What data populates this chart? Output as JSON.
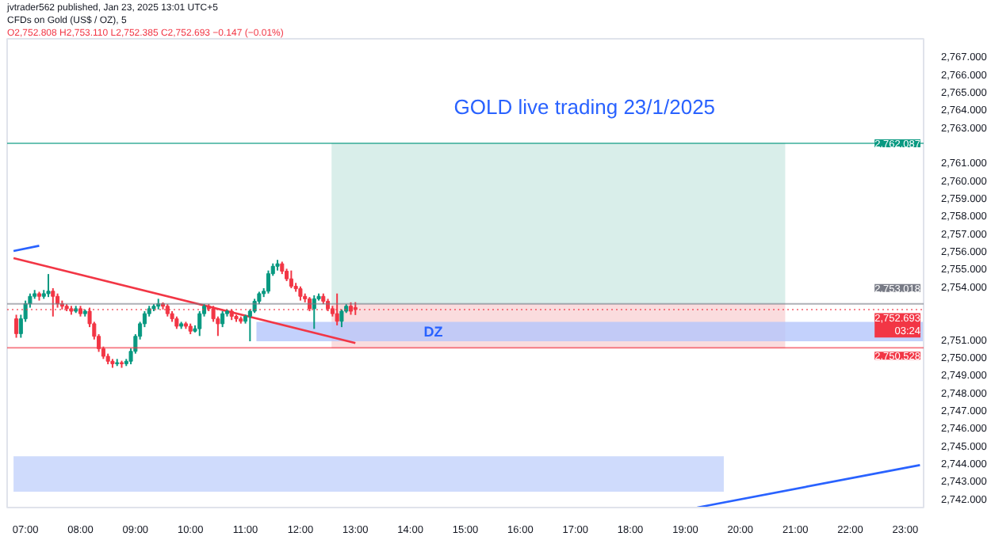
{
  "chart_data": {
    "type": "candlestick",
    "title": "GOLD live trading 23/1/2025",
    "annotations": [
      "jvtrader562 published, Jan 23, 2025 13:01 UTC+5",
      "CFDs on Gold (US$ / OZ), 5",
      "O2,752.808 H2,753.110 L2,752.385 C2,752.693 −0.147 (−0.01%)",
      "DZ"
    ],
    "x": [
      "2025-01-23T06:50",
      "2025-01-23T06:55",
      "2025-01-23T07:00",
      "2025-01-23T07:05",
      "2025-01-23T07:10",
      "2025-01-23T07:15",
      "2025-01-23T07:20",
      "2025-01-23T07:25",
      "2025-01-23T07:30",
      "2025-01-23T07:35",
      "2025-01-23T07:40",
      "2025-01-23T07:45",
      "2025-01-23T07:50",
      "2025-01-23T07:55",
      "2025-01-23T08:00",
      "2025-01-23T08:05",
      "2025-01-23T08:10",
      "2025-01-23T08:15",
      "2025-01-23T08:20",
      "2025-01-23T08:25",
      "2025-01-23T08:30",
      "2025-01-23T08:35",
      "2025-01-23T08:40",
      "2025-01-23T08:45",
      "2025-01-23T08:50",
      "2025-01-23T08:55",
      "2025-01-23T09:00",
      "2025-01-23T09:05",
      "2025-01-23T09:10",
      "2025-01-23T09:15",
      "2025-01-23T09:20",
      "2025-01-23T09:25",
      "2025-01-23T09:30",
      "2025-01-23T09:35",
      "2025-01-23T09:40",
      "2025-01-23T09:45",
      "2025-01-23T09:50",
      "2025-01-23T09:55",
      "2025-01-23T10:00",
      "2025-01-23T10:05",
      "2025-01-23T10:10",
      "2025-01-23T10:15",
      "2025-01-23T10:20",
      "2025-01-23T10:25",
      "2025-01-23T10:30",
      "2025-01-23T10:35",
      "2025-01-23T10:40",
      "2025-01-23T10:45",
      "2025-01-23T10:50",
      "2025-01-23T10:55",
      "2025-01-23T11:00",
      "2025-01-23T11:05",
      "2025-01-23T11:10",
      "2025-01-23T11:15",
      "2025-01-23T11:20",
      "2025-01-23T11:25",
      "2025-01-23T11:30",
      "2025-01-23T11:35",
      "2025-01-23T11:40",
      "2025-01-23T11:45",
      "2025-01-23T11:50",
      "2025-01-23T11:55",
      "2025-01-23T12:00",
      "2025-01-23T12:05",
      "2025-01-23T12:10",
      "2025-01-23T12:15",
      "2025-01-23T12:20",
      "2025-01-23T12:25",
      "2025-01-23T12:30",
      "2025-01-23T12:35",
      "2025-01-23T12:40",
      "2025-01-23T12:45",
      "2025-01-23T12:50",
      "2025-01-23T12:55",
      "2025-01-23T13:00"
    ],
    "ohlc": [
      [
        2752.17,
        2752.4,
        2751.1,
        2751.33
      ],
      [
        2751.33,
        2752.4,
        2751.1,
        2752.17
      ],
      [
        2752.17,
        2753.2,
        2752.0,
        2753.02
      ],
      [
        2753.02,
        2753.6,
        2752.8,
        2753.44
      ],
      [
        2753.44,
        2753.8,
        2753.3,
        2753.59
      ],
      [
        2753.59,
        2753.7,
        2753.2,
        2753.44
      ],
      [
        2753.44,
        2753.8,
        2753.3,
        2753.59
      ],
      [
        2753.59,
        2754.7,
        2753.4,
        2753.73
      ],
      [
        2753.73,
        2753.9,
        2752.3,
        2753.44
      ],
      [
        2753.44,
        2753.6,
        2752.8,
        2753.02
      ],
      [
        2753.02,
        2753.2,
        2752.7,
        2752.88
      ],
      [
        2752.88,
        2753.0,
        2752.6,
        2752.74
      ],
      [
        2752.74,
        2752.9,
        2752.4,
        2752.6
      ],
      [
        2752.6,
        2752.9,
        2752.5,
        2752.74
      ],
      [
        2752.74,
        2752.9,
        2752.3,
        2752.46
      ],
      [
        2752.46,
        2752.7,
        2752.3,
        2752.6
      ],
      [
        2752.6,
        2752.8,
        2751.7,
        2751.89
      ],
      [
        2751.89,
        2752.0,
        2751.0,
        2751.18
      ],
      [
        2751.18,
        2751.3,
        2750.3,
        2750.48
      ],
      [
        2750.48,
        2750.6,
        2749.9,
        2750.05
      ],
      [
        2750.05,
        2750.2,
        2749.6,
        2749.77
      ],
      [
        2749.77,
        2749.9,
        2749.4,
        2749.63
      ],
      [
        2749.63,
        2749.9,
        2749.5,
        2749.69
      ],
      [
        2749.69,
        2749.8,
        2749.4,
        2749.63
      ],
      [
        2749.63,
        2749.9,
        2749.5,
        2749.77
      ],
      [
        2749.77,
        2750.5,
        2749.6,
        2750.33
      ],
      [
        2750.33,
        2751.3,
        2750.2,
        2751.18
      ],
      [
        2751.18,
        2752.0,
        2751.0,
        2751.89
      ],
      [
        2751.89,
        2752.6,
        2751.7,
        2752.46
      ],
      [
        2752.46,
        2752.9,
        2752.3,
        2752.74
      ],
      [
        2752.74,
        2753.0,
        2752.6,
        2752.88
      ],
      [
        2752.88,
        2753.3,
        2752.7,
        2753.02
      ],
      [
        2753.02,
        2753.1,
        2752.7,
        2752.88
      ],
      [
        2752.88,
        2753.0,
        2752.3,
        2752.46
      ],
      [
        2752.46,
        2752.6,
        2752.0,
        2752.17
      ],
      [
        2752.17,
        2752.3,
        2751.6,
        2751.75
      ],
      [
        2751.75,
        2752.0,
        2751.6,
        2751.89
      ],
      [
        2751.89,
        2752.0,
        2751.6,
        2751.75
      ],
      [
        2751.75,
        2751.9,
        2751.3,
        2751.47
      ],
      [
        2751.47,
        2751.8,
        2751.4,
        2751.61
      ],
      [
        2751.61,
        2752.6,
        2751.2,
        2752.46
      ],
      [
        2752.46,
        2753.0,
        2752.3,
        2752.88
      ],
      [
        2752.88,
        2753.0,
        2752.6,
        2752.74
      ],
      [
        2752.74,
        2752.9,
        2752.0,
        2752.17
      ],
      [
        2752.17,
        2752.3,
        2751.2,
        2751.89
      ],
      [
        2751.89,
        2752.6,
        2751.7,
        2752.46
      ],
      [
        2752.46,
        2752.7,
        2752.3,
        2752.6
      ],
      [
        2752.6,
        2752.7,
        2752.1,
        2752.31
      ],
      [
        2752.31,
        2752.4,
        2752.0,
        2752.17
      ],
      [
        2752.17,
        2752.3,
        2751.9,
        2752.03
      ],
      [
        2752.03,
        2752.4,
        2751.9,
        2752.31
      ],
      [
        2752.31,
        2752.7,
        2750.9,
        2752.6
      ],
      [
        2752.6,
        2753.3,
        2752.5,
        2753.16
      ],
      [
        2753.16,
        2753.7,
        2753.0,
        2753.59
      ],
      [
        2753.59,
        2753.9,
        2753.4,
        2753.73
      ],
      [
        2753.73,
        2754.9,
        2753.6,
        2754.72
      ],
      [
        2754.72,
        2755.3,
        2754.6,
        2755.14
      ],
      [
        2755.14,
        2755.5,
        2754.9,
        2755.28
      ],
      [
        2755.28,
        2755.4,
        2754.7,
        2754.86
      ],
      [
        2754.86,
        2755.0,
        2754.3,
        2754.43
      ],
      [
        2754.43,
        2754.9,
        2753.9,
        2754.01
      ],
      [
        2754.01,
        2754.2,
        2753.7,
        2753.87
      ],
      [
        2753.87,
        2754.0,
        2753.2,
        2753.44
      ],
      [
        2753.44,
        2753.6,
        2753.1,
        2753.3
      ],
      [
        2753.3,
        2753.4,
        2752.6,
        2752.74
      ],
      [
        2752.74,
        2753.5,
        2751.6,
        2753.3
      ],
      [
        2753.3,
        2753.6,
        2753.2,
        2753.44
      ],
      [
        2753.44,
        2753.6,
        2753.0,
        2753.16
      ],
      [
        2753.16,
        2753.3,
        2752.6,
        2752.74
      ],
      [
        2752.74,
        2752.9,
        2752.3,
        2752.46
      ],
      [
        2752.46,
        2753.6,
        2751.8,
        2752.03
      ],
      [
        2752.03,
        2752.7,
        2751.7,
        2752.6
      ],
      [
        2752.6,
        2753.0,
        2752.5,
        2752.88
      ],
      [
        2752.88,
        2753.1,
        2752.4,
        2752.6
      ],
      [
        2752.808,
        2753.11,
        2752.385,
        2752.693
      ]
    ],
    "series": [
      {
        "type": "area",
        "color": "#cfeae5",
        "x": [
          "2025-01-23T12:34",
          "2025-01-23T20:49"
        ],
        "values": [
          null,
          null
        ],
        "upper": [
          2762.1,
          2762.1
        ],
        "lower": [
          2753.0,
          2753.0
        ]
      },
      {
        "type": "area",
        "color": "#f9d3d6",
        "x": [
          "2025-01-23T12:34",
          "2025-01-23T20:49"
        ],
        "values": [
          null,
          null
        ],
        "upper": [
          2753.0,
          2753.0
        ],
        "lower": [
          2750.5,
          2750.5
        ]
      },
      {
        "type": "area",
        "color": "#b4c6fb",
        "x": [
          "2025-01-23T11:12",
          "2025-01-23T23:20"
        ],
        "values": [
          null,
          null
        ],
        "upper": [
          2752.0,
          2752.0
        ],
        "lower": [
          2750.9,
          2750.9
        ]
      },
      {
        "type": "area",
        "color": "#c3d2fb",
        "x": [
          "2025-01-23T06:47",
          "2025-01-23T19:42"
        ],
        "values": [
          null,
          null
        ],
        "upper": [
          2744.4,
          2744.4
        ],
        "lower": [
          2742.4,
          2742.4
        ]
      },
      {
        "type": "line",
        "color": "#f23645",
        "x": [
          "2025-01-23T06:47",
          "2025-01-23T13:00"
        ],
        "values": [
          2755.6,
          2750.8
        ]
      },
      {
        "type": "line",
        "color": "#2962ff",
        "x": [
          "2025-01-23T06:47",
          "2025-01-23T07:15"
        ],
        "values": [
          2756.0,
          2756.3
        ]
      },
      {
        "type": "line",
        "color": "#2962ff",
        "x": [
          "2025-01-23T19:13",
          "2025-01-23T23:16"
        ],
        "values": [
          2741.5,
          2743.9
        ]
      }
    ],
    "ref_lines": [
      {
        "axis": "y",
        "value": 2762.087,
        "label": "2,762.087",
        "color": "#089981",
        "line_style": "solid"
      },
      {
        "axis": "y",
        "value": 2753.018,
        "label": "2,753.018",
        "color": "#787b86",
        "line_style": "solid"
      },
      {
        "axis": "y",
        "value": 2752.693,
        "label": "2,752.693\n03:24",
        "color": "#f23645",
        "line_style": "dotted"
      },
      {
        "axis": "y",
        "value": 2750.528,
        "label": "2,750.528",
        "color": "#f23645",
        "line_style": "solid"
      }
    ],
    "xlim": [
      "2025-01-23T06:40",
      "2025-01-23T23:20"
    ],
    "xticks": [
      {
        "value": "2025-01-23T07:00",
        "label": "07:00"
      },
      {
        "value": "2025-01-23T08:00",
        "label": "08:00"
      },
      {
        "value": "2025-01-23T09:00",
        "label": "09:00"
      },
      {
        "value": "2025-01-23T10:00",
        "label": "10:00"
      },
      {
        "value": "2025-01-23T11:00",
        "label": "11:00"
      },
      {
        "value": "2025-01-23T12:00",
        "label": "12:00"
      },
      {
        "value": "2025-01-23T13:00",
        "label": "13:00"
      },
      {
        "value": "2025-01-23T14:00",
        "label": "14:00"
      },
      {
        "value": "2025-01-23T15:00",
        "label": "15:00"
      },
      {
        "value": "2025-01-23T16:00",
        "label": "16:00"
      },
      {
        "value": "2025-01-23T17:00",
        "label": "17:00"
      },
      {
        "value": "2025-01-23T18:00",
        "label": "18:00"
      },
      {
        "value": "2025-01-23T19:00",
        "label": "19:00"
      },
      {
        "value": "2025-01-23T20:00",
        "label": "20:00"
      },
      {
        "value": "2025-01-23T21:00",
        "label": "21:00"
      },
      {
        "value": "2025-01-23T22:00",
        "label": "22:00"
      },
      {
        "value": "2025-01-23T23:00",
        "label": "23:00"
      }
    ],
    "ylim": [
      2741.5,
      2768
    ],
    "yticks": [
      {
        "value": 2742,
        "label": "2,742.000"
      },
      {
        "value": 2743,
        "label": "2,743.000"
      },
      {
        "value": 2744,
        "label": "2,744.000"
      },
      {
        "value": 2745,
        "label": "2,745.000"
      },
      {
        "value": 2746,
        "label": "2,746.000"
      },
      {
        "value": 2747,
        "label": "2,747.000"
      },
      {
        "value": 2748,
        "label": "2,748.000"
      },
      {
        "value": 2749,
        "label": "2,749.000"
      },
      {
        "value": 2750,
        "label": "2,750.000"
      },
      {
        "value": 2751,
        "label": "2,751.000"
      },
      {
        "value": 2754,
        "label": "2,754.000"
      },
      {
        "value": 2755,
        "label": "2,755.000"
      },
      {
        "value": 2756,
        "label": "2,756.000"
      },
      {
        "value": 2757,
        "label": "2,757.000"
      },
      {
        "value": 2758,
        "label": "2,758.000"
      },
      {
        "value": 2759,
        "label": "2,759.000"
      },
      {
        "value": 2760,
        "label": "2,760.000"
      },
      {
        "value": 2761,
        "label": "2,761.000"
      },
      {
        "value": 2763,
        "label": "2,763.000"
      },
      {
        "value": 2764,
        "label": "2,764.000"
      },
      {
        "value": 2765,
        "label": "2,765.000"
      },
      {
        "value": 2766,
        "label": "2,766.000"
      },
      {
        "value": 2767,
        "label": "2,767.000"
      }
    ],
    "grid": false
  }
}
